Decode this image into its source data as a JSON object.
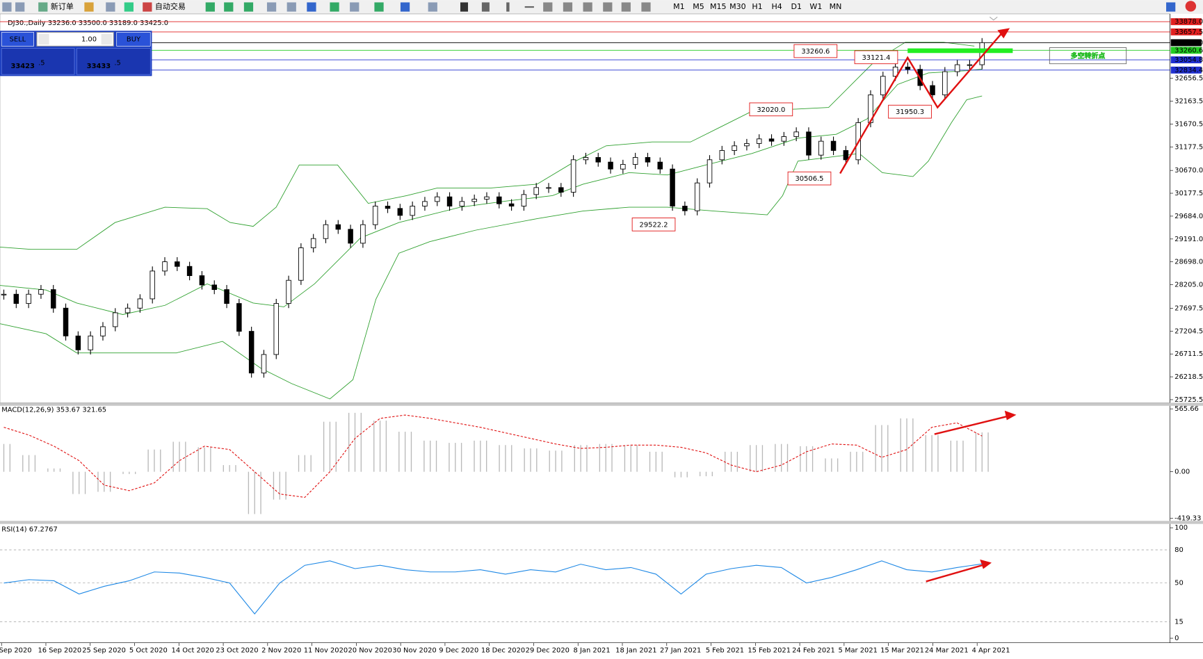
{
  "toolbar": {
    "buttons": [
      "新订单",
      "自动交易"
    ],
    "timeframes": [
      "M1",
      "M5",
      "M15",
      "M30",
      "H1",
      "H4",
      "D1",
      "W1",
      "MN"
    ]
  },
  "chart": {
    "symbol_info": "DJ30.,Daily  33236.0 33500.0 33189.0 33425.0",
    "trade_panel": {
      "sell": "SELL",
      "lot": "1.00",
      "buy": "BUY",
      "sell_price": {
        "main": "33423",
        "pip": ".5"
      },
      "buy_price": {
        "main": "33433",
        "pip": ".5"
      }
    },
    "price_ticks": [
      32656.5,
      32163.5,
      31670.5,
      31177.5,
      {
        "value": 30670.0,
        "label": "30670.0"
      },
      30177.5,
      {
        "value": 29684.0,
        "label": "29684.0"
      },
      {
        "value": 29191.0,
        "label": "29191.0"
      },
      {
        "value": 28698.0,
        "label": "28698.0"
      },
      {
        "value": 28205.0,
        "label": "28205.0"
      },
      27697.5,
      27204.5,
      26711.5,
      26218.5,
      25725.5
    ],
    "price_lines": [
      {
        "value": 33878.0,
        "label": "33878.0",
        "color": "#e02020"
      },
      {
        "value": 33657.5,
        "label": "33657.5",
        "color": "#e02020"
      },
      {
        "value": 33425.0,
        "label": "33425.0",
        "color": "#000000"
      },
      {
        "value": 33260.6,
        "label": "33260.6",
        "color": "#22cc22"
      },
      {
        "value": 33054.8,
        "label": "33054.8",
        "color": "#2030d0"
      },
      {
        "value": 32834.4,
        "label": "32834.4",
        "color": "#2030d0"
      }
    ],
    "closes": [
      28000,
      27800,
      28000,
      28100,
      27700,
      27100,
      26800,
      27100,
      27300,
      27600,
      27700,
      27900,
      28500,
      28700,
      28600,
      28400,
      28200,
      28100,
      27800,
      27200,
      26300,
      26700,
      27800,
      28300,
      29000,
      29200,
      29500,
      29400,
      29100,
      29500,
      29900,
      29850,
      29700,
      29900,
      30000,
      30100,
      29900,
      30000,
      30050,
      30100,
      29950,
      29900,
      30150,
      30300,
      30300,
      30200,
      30900,
      30950,
      30850,
      30700,
      30800,
      30950,
      30850,
      30700,
      29900,
      29800,
      30400,
      30900,
      31100,
      31200,
      31250,
      31350,
      31300,
      31400,
      31500,
      31000,
      31300,
      31100,
      30900,
      31700,
      32300,
      32700,
      32900,
      32850,
      32500,
      32300,
      32800,
      32950,
      32950,
      33425
    ],
    "annotations": [
      {
        "value": 33260.6
      },
      {
        "value": 33121.4
      },
      {
        "value": 32020.0,
        "label": "32020.0"
      },
      {
        "value": 31950.3
      },
      {
        "value": 30506.5
      },
      {
        "value": 29522.2
      }
    ],
    "note": "多空转折点",
    "dates": [
      "Sep 2020",
      "16 Sep 2020",
      "25 Sep 2020",
      "5 Oct 2020",
      "14 Oct 2020",
      "23 Oct 2020",
      "2 Nov 2020",
      "11 Nov 2020",
      "20 Nov 2020",
      "30 Nov 2020",
      "9 Dec 2020",
      "18 Dec 2020",
      "29 Dec 2020",
      "8 Jan 2021",
      "18 Jan 2021",
      "27 Jan 2021",
      "5 Feb 2021",
      "15 Feb 2021",
      "24 Feb 2021",
      "5 Mar 2021",
      "15 Mar 2021",
      "24 Mar 2021",
      "4 Apr 2021"
    ]
  },
  "macd": {
    "title": "MACD(12,26,9) 353.67 321.65",
    "yticks": [
      {
        "value": 565.66,
        "label": "565.66"
      },
      {
        "value": 0,
        "label": "0.00"
      },
      {
        "value": -419.33,
        "label": "-419.33"
      }
    ],
    "histogram": [
      250,
      150,
      30,
      -200,
      -180,
      -20,
      200,
      270,
      220,
      60,
      -380,
      -250,
      150,
      450,
      530,
      460,
      360,
      280,
      260,
      280,
      240,
      210,
      190,
      240,
      250,
      240,
      180,
      -50,
      -40,
      180,
      240,
      250,
      230,
      120,
      180,
      420,
      480,
      330,
      280,
      353.67
    ],
    "signal": [
      400,
      330,
      230,
      100,
      -120,
      -170,
      -100,
      100,
      230,
      200,
      0,
      -200,
      -230,
      0,
      300,
      480,
      510,
      480,
      440,
      400,
      350,
      300,
      250,
      210,
      220,
      240,
      240,
      220,
      170,
      60,
      0,
      60,
      180,
      250,
      240,
      130,
      200,
      400,
      440,
      321.65
    ]
  },
  "rsi": {
    "title": "RSI(14) 67.2767",
    "yticks": [
      100,
      80,
      50,
      15,
      0
    ],
    "values": [
      50,
      53,
      52,
      40,
      47,
      52,
      60,
      59,
      55,
      50,
      22,
      50,
      66,
      70,
      63,
      66,
      62,
      60,
      60,
      62,
      58,
      62,
      60,
      67,
      62,
      64,
      58,
      40,
      58,
      63,
      66,
      64,
      50,
      55,
      62,
      70,
      62,
      60,
      64,
      67.2767
    ]
  }
}
